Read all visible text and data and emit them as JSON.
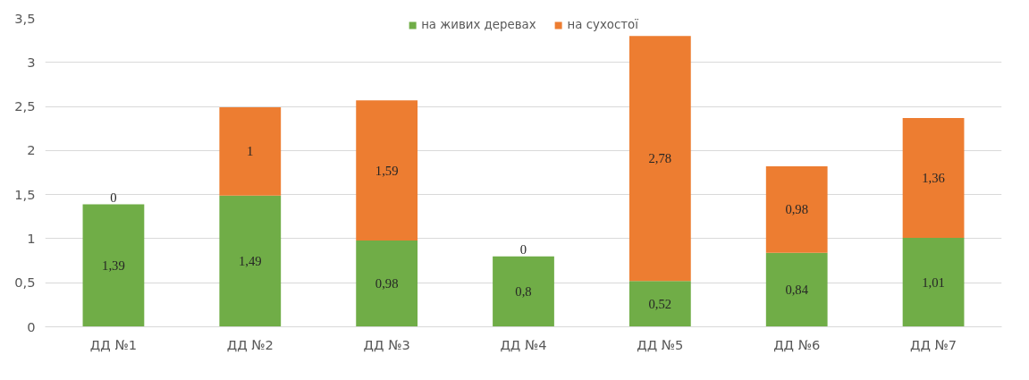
{
  "chart_data": {
    "type": "bar",
    "stacked": true,
    "categories": [
      "ДД №1",
      "ДД №2",
      "ДД №3",
      "ДД №4",
      "ДД №5",
      "ДД №6",
      "ДД №7"
    ],
    "series": [
      {
        "name": "на живих деревах",
        "color": "#70ad47",
        "values": [
          1.39,
          1.49,
          0.98,
          0.8,
          0.52,
          0.84,
          1.01
        ],
        "value_labels": [
          "1,39",
          "1,49",
          "0,98",
          "0,8",
          "0,52",
          "0,84",
          "1,01"
        ]
      },
      {
        "name": "на сухостої",
        "color": "#ed7d31",
        "values": [
          0,
          1,
          1.59,
          0,
          2.78,
          0.98,
          1.36
        ],
        "value_labels": [
          "0",
          "1",
          "1,59",
          "0",
          "2,78",
          "0,98",
          "1,36"
        ]
      }
    ],
    "ylim": [
      0,
      3.5
    ],
    "yticks": [
      0,
      {
        "value": 0.5,
        "label": "0,5"
      },
      1,
      {
        "value": 1.5,
        "label": "1,5"
      },
      2,
      {
        "value": 2.5,
        "label": "2,5"
      },
      3,
      {
        "value": 3.5,
        "label": "3,5"
      }
    ],
    "grid": "y",
    "legend": "top"
  }
}
